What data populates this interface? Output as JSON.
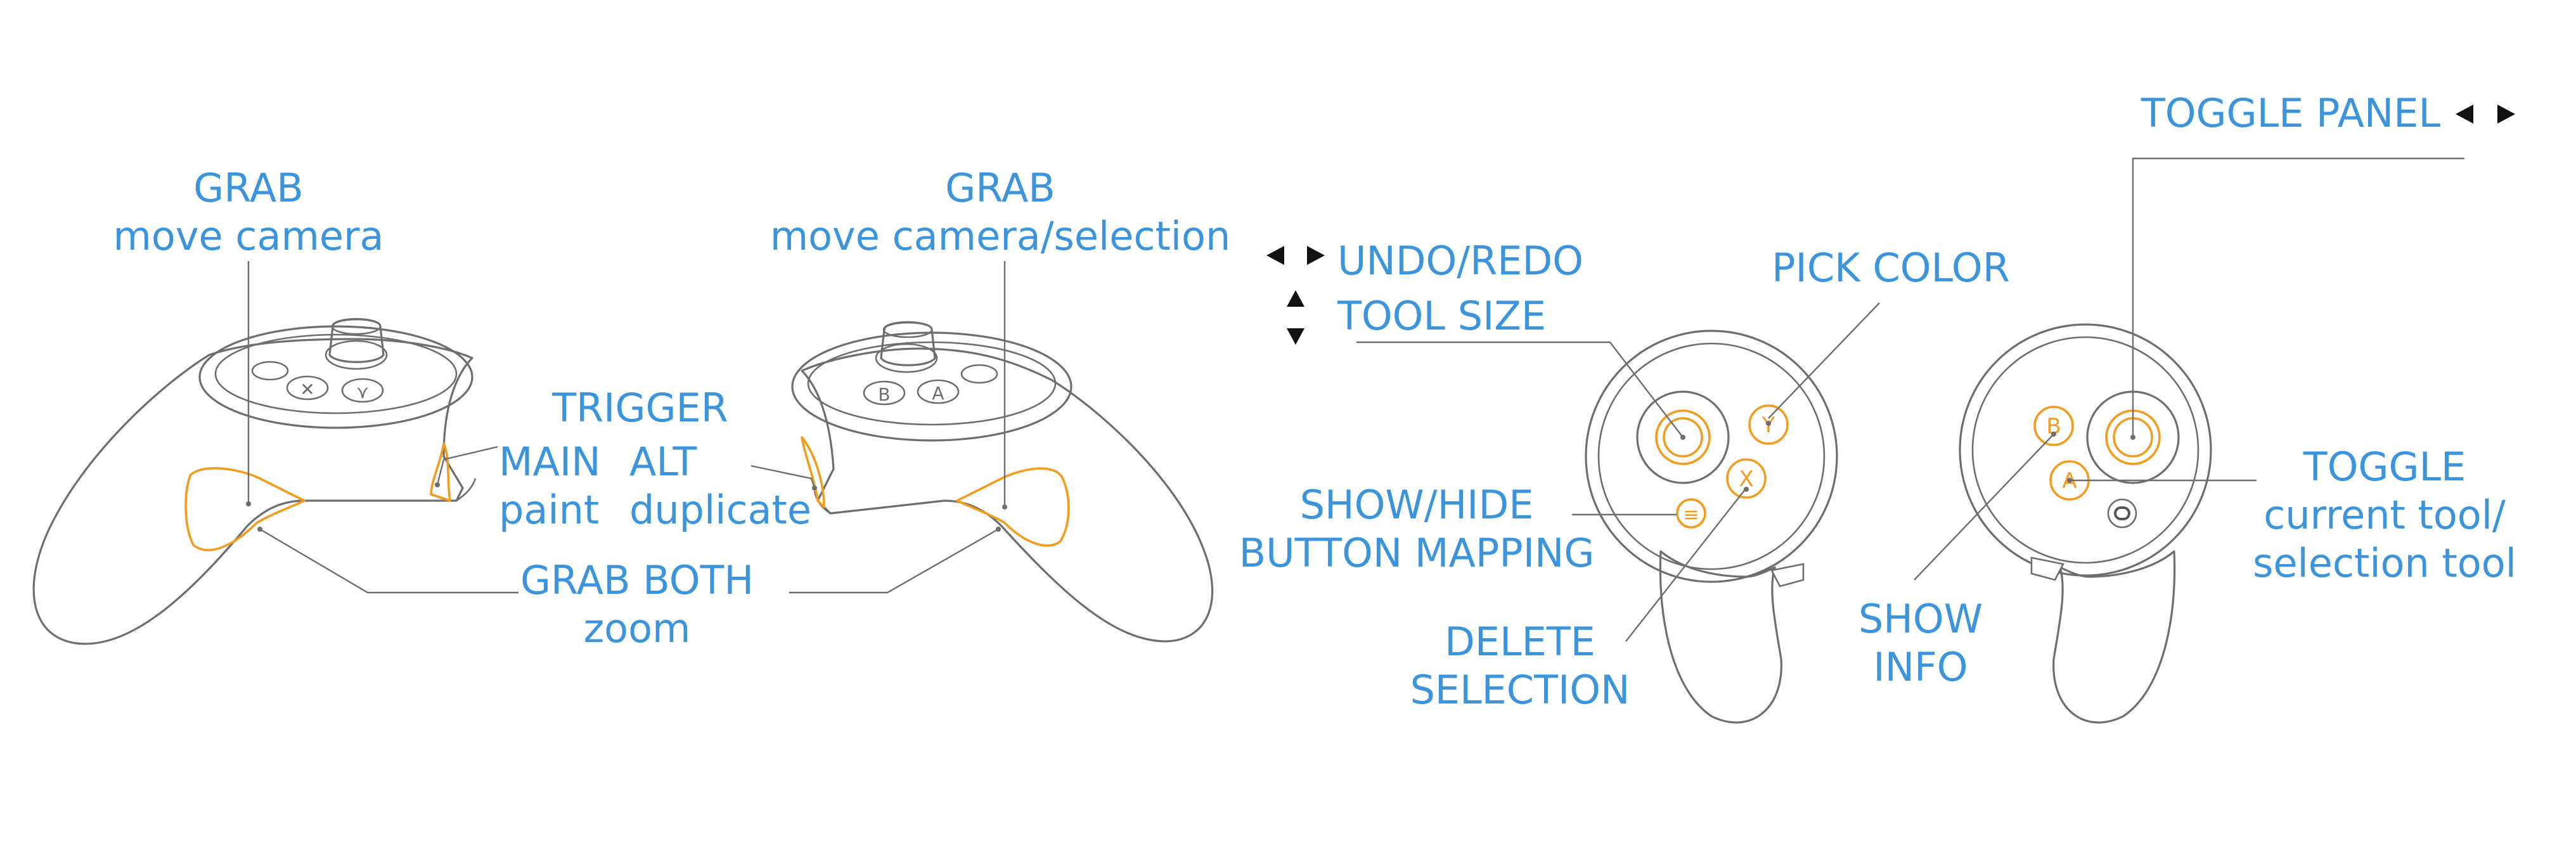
{
  "labels": {
    "grab_left_title": "GRAB",
    "grab_left_sub": "move camera",
    "grab_right_title": "GRAB",
    "grab_right_sub": "move camera/selection",
    "trigger": "TRIGGER",
    "main": "MAIN",
    "paint": "paint",
    "alt": "ALT",
    "duplicate": "duplicate",
    "grab_both": "GRAB BOTH",
    "zoom": "zoom",
    "undo_redo": "UNDO/REDO",
    "tool_size": "TOOL SIZE",
    "pick_color": "PICK COLOR",
    "show_hide_1": "SHOW/HIDE",
    "show_hide_2": "BUTTON MAPPING",
    "delete_1": "DELETE",
    "delete_2": "SELECTION",
    "toggle_panel": "TOGGLE PANEL",
    "toggle_1": "TOGGLE",
    "toggle_2": "current tool/",
    "toggle_3": "selection tool",
    "show_info_1": "SHOW",
    "show_info_2": "INFO"
  },
  "buttons": {
    "x": "X",
    "y": "Y",
    "a": "A",
    "b": "B",
    "menu": "≡"
  },
  "colors": {
    "label": "#3c94dc",
    "highlight": "#f39c1e",
    "outline": "#6e6e6e"
  }
}
